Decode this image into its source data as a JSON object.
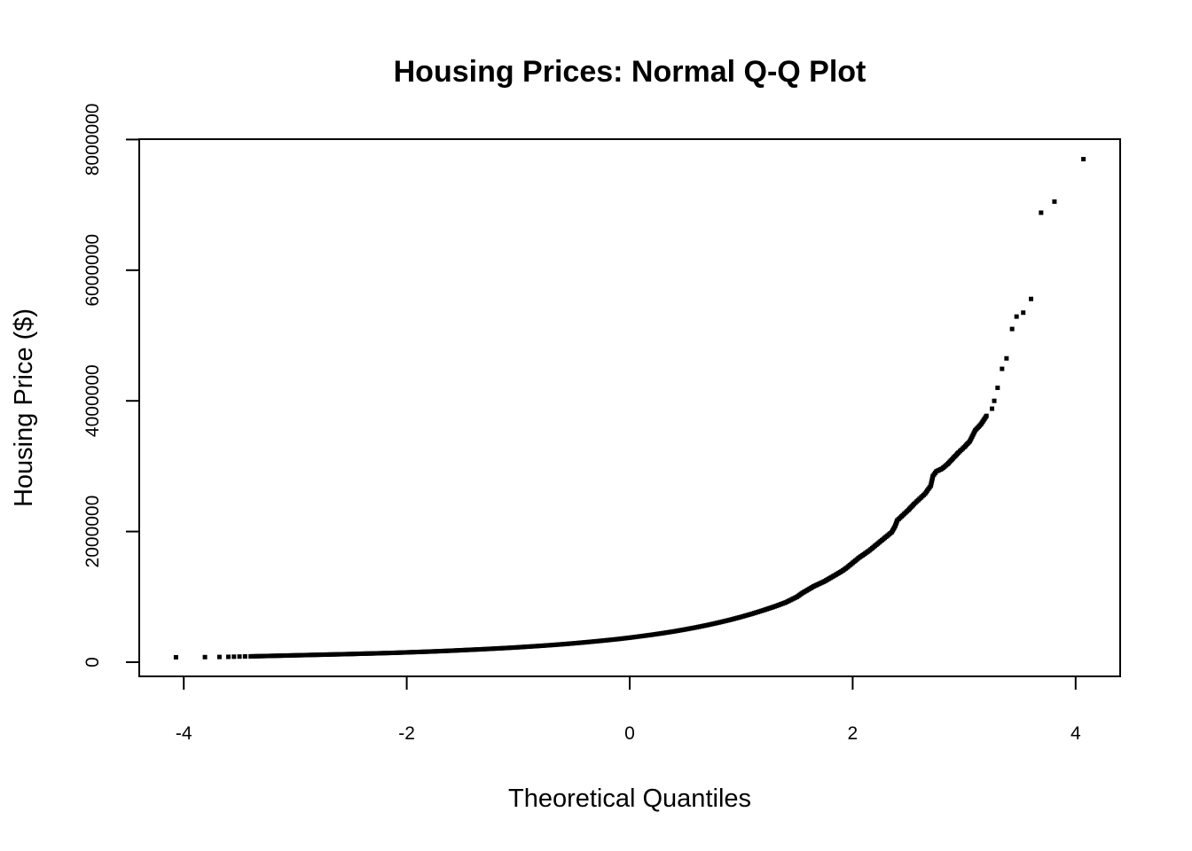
{
  "chart_data": {
    "type": "scatter",
    "title": "Housing Prices: Normal Q-Q Plot",
    "xlabel": "Theoretical Quantiles",
    "ylabel": "Housing Price ($)",
    "xlim": [
      -4.2,
      4.2
    ],
    "ylim": [
      -200000,
      8100000
    ],
    "x_ticks": [
      -4,
      -2,
      0,
      2,
      4
    ],
    "x_tick_labels": [
      "-4",
      "-2",
      "0",
      "2",
      "4"
    ],
    "y_ticks": [
      0,
      2000000,
      4000000,
      6000000,
      8000000
    ],
    "y_tick_labels": [
      "0",
      "2000000",
      "4000000",
      "6000000",
      "8000000"
    ],
    "grid": false,
    "legend": "none",
    "marker_color": "#000000",
    "points": [
      [
        -4.07,
        75000
      ],
      [
        -3.81,
        78000
      ],
      [
        -3.68,
        80000
      ],
      [
        -3.6,
        82000
      ],
      [
        -3.55,
        84000
      ],
      [
        -3.5,
        86000
      ],
      [
        -3.45,
        88000
      ],
      [
        -3.4,
        89000
      ],
      [
        -3.35,
        91000
      ],
      [
        -3.3,
        93000
      ],
      [
        -3.2,
        97000
      ],
      [
        -3.1,
        101000
      ],
      [
        -3.0,
        105000
      ],
      [
        -2.9,
        109000
      ],
      [
        -2.8,
        113000
      ],
      [
        -2.7,
        117000
      ],
      [
        -2.6,
        121000
      ],
      [
        -2.5,
        125000
      ],
      [
        -2.4,
        130000
      ],
      [
        -2.3,
        134000
      ],
      [
        -2.2,
        139000
      ],
      [
        -2.1,
        144000
      ],
      [
        -2.0,
        150000
      ],
      [
        -1.9,
        156000
      ],
      [
        -1.8,
        162000
      ],
      [
        -1.7,
        169000
      ],
      [
        -1.6,
        176000
      ],
      [
        -1.5,
        184000
      ],
      [
        -1.4,
        192000
      ],
      [
        -1.3,
        200000
      ],
      [
        -1.2,
        209000
      ],
      [
        -1.1,
        218000
      ],
      [
        -1.0,
        228000
      ],
      [
        -0.9,
        239000
      ],
      [
        -0.8,
        250000
      ],
      [
        -0.7,
        262000
      ],
      [
        -0.6,
        275000
      ],
      [
        -0.5,
        289000
      ],
      [
        -0.4,
        304000
      ],
      [
        -0.3,
        320000
      ],
      [
        -0.2,
        337000
      ],
      [
        -0.1,
        355000
      ],
      [
        0.0,
        375000
      ],
      [
        0.1,
        397000
      ],
      [
        0.2,
        420000
      ],
      [
        0.3,
        445000
      ],
      [
        0.4,
        472000
      ],
      [
        0.5,
        502000
      ],
      [
        0.6,
        534000
      ],
      [
        0.7,
        569000
      ],
      [
        0.8,
        607000
      ],
      [
        0.9,
        648000
      ],
      [
        1.0,
        693000
      ],
      [
        1.1,
        742000
      ],
      [
        1.2,
        795000
      ],
      [
        1.3,
        852000
      ],
      [
        1.4,
        915000
      ],
      [
        1.5,
        1000000
      ],
      [
        1.55,
        1060000
      ],
      [
        1.6,
        1110000
      ],
      [
        1.65,
        1160000
      ],
      [
        1.7,
        1200000
      ],
      [
        1.75,
        1240000
      ],
      [
        1.8,
        1290000
      ],
      [
        1.85,
        1340000
      ],
      [
        1.9,
        1390000
      ],
      [
        1.95,
        1450000
      ],
      [
        2.0,
        1520000
      ],
      [
        2.05,
        1590000
      ],
      [
        2.1,
        1650000
      ],
      [
        2.15,
        1710000
      ],
      [
        2.2,
        1780000
      ],
      [
        2.25,
        1850000
      ],
      [
        2.3,
        1920000
      ],
      [
        2.35,
        1990000
      ],
      [
        2.38,
        2080000
      ],
      [
        2.4,
        2170000
      ],
      [
        2.45,
        2250000
      ],
      [
        2.5,
        2330000
      ],
      [
        2.55,
        2420000
      ],
      [
        2.6,
        2500000
      ],
      [
        2.65,
        2580000
      ],
      [
        2.7,
        2700000
      ],
      [
        2.72,
        2850000
      ],
      [
        2.75,
        2920000
      ],
      [
        2.8,
        2960000
      ],
      [
        2.85,
        3030000
      ],
      [
        2.9,
        3120000
      ],
      [
        2.95,
        3210000
      ],
      [
        3.0,
        3290000
      ],
      [
        3.05,
        3380000
      ],
      [
        3.1,
        3550000
      ],
      [
        3.15,
        3640000
      ],
      [
        3.2,
        3770000
      ],
      [
        3.25,
        3880000
      ],
      [
        3.27,
        4000000
      ],
      [
        3.3,
        4200000
      ],
      [
        3.34,
        4490000
      ],
      [
        3.38,
        4650000
      ],
      [
        3.43,
        5100000
      ],
      [
        3.47,
        5290000
      ],
      [
        3.53,
        5350000
      ],
      [
        3.6,
        5560000
      ],
      [
        3.69,
        6880000
      ],
      [
        3.81,
        7050000
      ],
      [
        4.07,
        7700000
      ]
    ]
  }
}
